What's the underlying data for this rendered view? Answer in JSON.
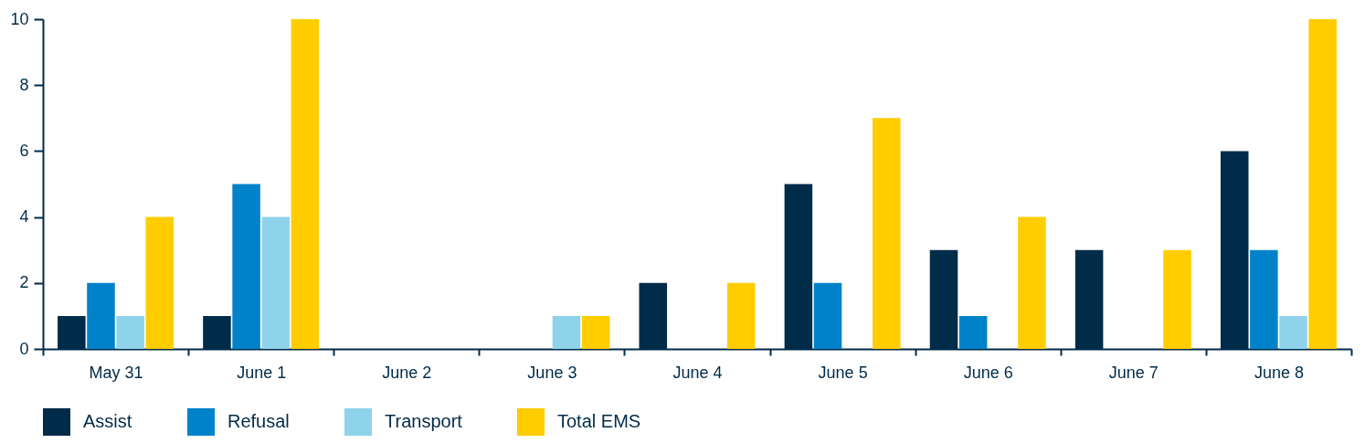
{
  "chart_data": {
    "type": "bar",
    "categories": [
      "May 31",
      "June 1",
      "June 2",
      "June 3",
      "June 4",
      "June 5",
      "June 6",
      "June 7",
      "June 8"
    ],
    "series": [
      {
        "name": "Assist",
        "color": "#002b49",
        "values": [
          1,
          1,
          0,
          0,
          2,
          5,
          3,
          3,
          6
        ]
      },
      {
        "name": "Refusal",
        "color": "#0082ca",
        "values": [
          2,
          5,
          0,
          0,
          0,
          2,
          1,
          0,
          3
        ]
      },
      {
        "name": "Transport",
        "color": "#8fd3ea",
        "values": [
          1,
          4,
          0,
          1,
          0,
          0,
          0,
          0,
          1
        ]
      },
      {
        "name": "Total EMS",
        "color": "#ffcd00",
        "values": [
          4,
          10,
          0,
          1,
          2,
          7,
          4,
          3,
          10
        ]
      }
    ],
    "ylim": [
      0,
      10
    ],
    "yticks": [
      0,
      2,
      4,
      6,
      8,
      10
    ],
    "grid": false,
    "legend": "bottom"
  }
}
